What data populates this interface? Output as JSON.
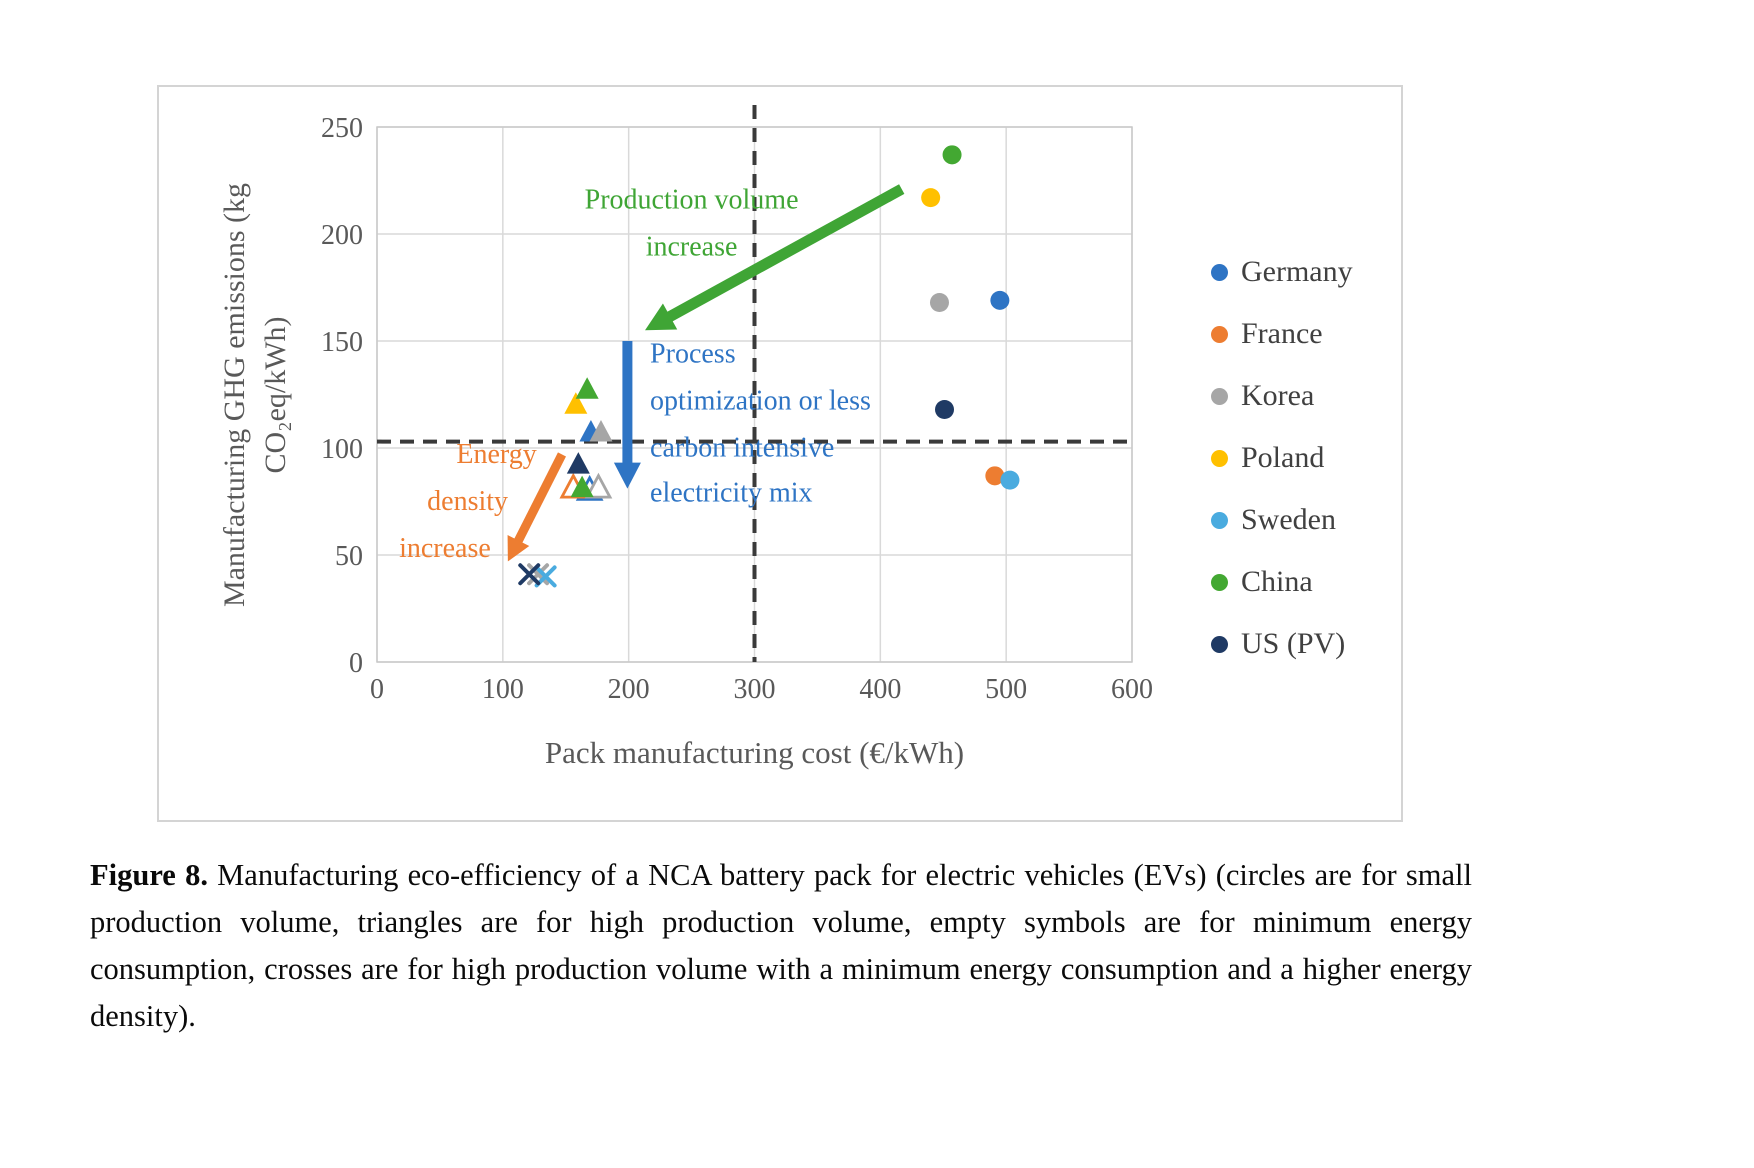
{
  "figure": {
    "caption_label": "Figure 8.",
    "caption_text": " Manufacturing eco-efficiency of a NCA battery pack for electric vehicles (EVs) (circles are for small production volume, triangles are for high production volume, empty symbols are for minimum energy consumption, crosses are for high production volume with a minimum energy consumption and a higher energy density)."
  },
  "chart_data": {
    "type": "scatter",
    "title": "",
    "xlabel": "Pack manufacturing cost (€/kWh)",
    "ylabel": "Manufacturing GHG emissions (kg CO₂eq/kWh)",
    "ylabel_lines": [
      "Manufacturing GHG emissions (kg",
      "CO₂eq/kWh)"
    ],
    "xlim": [
      0,
      600
    ],
    "ylim": [
      0,
      250
    ],
    "xticks": [
      0,
      100,
      200,
      300,
      400,
      500,
      600
    ],
    "yticks": [
      0,
      50,
      100,
      150,
      200,
      250
    ],
    "grid": true,
    "legend_position": "right",
    "dashed_vline_x": 300,
    "dashed_hline_y": 103,
    "marker_semantics": {
      "circle": "small production volume",
      "triangle": "high production volume",
      "triangle-open": "minimum energy consumption",
      "cross": "high production volume with minimum energy consumption and higher energy density"
    },
    "series": [
      {
        "name": "Germany",
        "color": "#2e74c4",
        "points": [
          {
            "x": 495,
            "y": 169,
            "marker": "circle"
          },
          {
            "x": 170,
            "y": 107,
            "marker": "triangle"
          },
          {
            "x": 169,
            "y": 80,
            "marker": "triangle-open"
          }
        ]
      },
      {
        "name": "France",
        "color": "#ed7d31",
        "points": [
          {
            "x": 491,
            "y": 87,
            "marker": "circle"
          },
          {
            "x": 156,
            "y": 81,
            "marker": "triangle-open"
          }
        ]
      },
      {
        "name": "Korea",
        "color": "#a6a6a6",
        "points": [
          {
            "x": 447,
            "y": 168,
            "marker": "circle"
          },
          {
            "x": 178,
            "y": 107,
            "marker": "triangle"
          },
          {
            "x": 176,
            "y": 81,
            "marker": "triangle-open"
          },
          {
            "x": 128,
            "y": 41,
            "marker": "cross"
          }
        ]
      },
      {
        "name": "Poland",
        "color": "#ffc000",
        "points": [
          {
            "x": 440,
            "y": 217,
            "marker": "circle"
          },
          {
            "x": 158,
            "y": 120,
            "marker": "triangle"
          }
        ]
      },
      {
        "name": "Sweden",
        "color": "#4aabdf",
        "points": [
          {
            "x": 503,
            "y": 85,
            "marker": "circle"
          },
          {
            "x": 134,
            "y": 40,
            "marker": "cross"
          }
        ]
      },
      {
        "name": "China",
        "color": "#43a832",
        "points": [
          {
            "x": 457,
            "y": 237,
            "marker": "circle"
          },
          {
            "x": 167,
            "y": 127,
            "marker": "triangle"
          },
          {
            "x": 163,
            "y": 81,
            "marker": "triangle"
          }
        ]
      },
      {
        "name": "US (PV)",
        "color": "#1f3a64",
        "points": [
          {
            "x": 451,
            "y": 118,
            "marker": "circle"
          },
          {
            "x": 160,
            "y": 92,
            "marker": "triangle"
          },
          {
            "x": 121,
            "y": 41,
            "marker": "cross"
          }
        ]
      }
    ],
    "annotations": [
      {
        "id": "production-volume-increase",
        "color": "#3fa535",
        "anchor": "middle",
        "lines": [
          {
            "text": "Production volume",
            "x": 250,
            "y": 215
          },
          {
            "text": "increase",
            "x": 250,
            "y": 193
          }
        ],
        "arrow": {
          "from": [
            417,
            221
          ],
          "to": [
            213,
            155
          ],
          "width": 11
        }
      },
      {
        "id": "process-optimization",
        "color": "#2e74c4",
        "anchor": "start",
        "lines": [
          {
            "text": "Process",
            "x": 217,
            "y": 143
          },
          {
            "text": "optimization or less",
            "x": 217,
            "y": 121
          },
          {
            "text": "carbon intensive",
            "x": 217,
            "y": 99
          },
          {
            "text": "electricity mix",
            "x": 217,
            "y": 78
          }
        ],
        "arrow": {
          "from": [
            199,
            150
          ],
          "to": [
            199,
            81
          ],
          "width": 10
        }
      },
      {
        "id": "energy-density-increase",
        "color": "#ed7d31",
        "anchor": "middle",
        "lines": [
          {
            "text": "Energy",
            "x": 95,
            "y": 96
          },
          {
            "text": "density",
            "x": 72,
            "y": 74
          },
          {
            "text": "increase",
            "x": 54,
            "y": 52
          }
        ],
        "arrow": {
          "from": [
            147,
            97
          ],
          "to": [
            104,
            47
          ],
          "width": 9
        }
      }
    ]
  }
}
